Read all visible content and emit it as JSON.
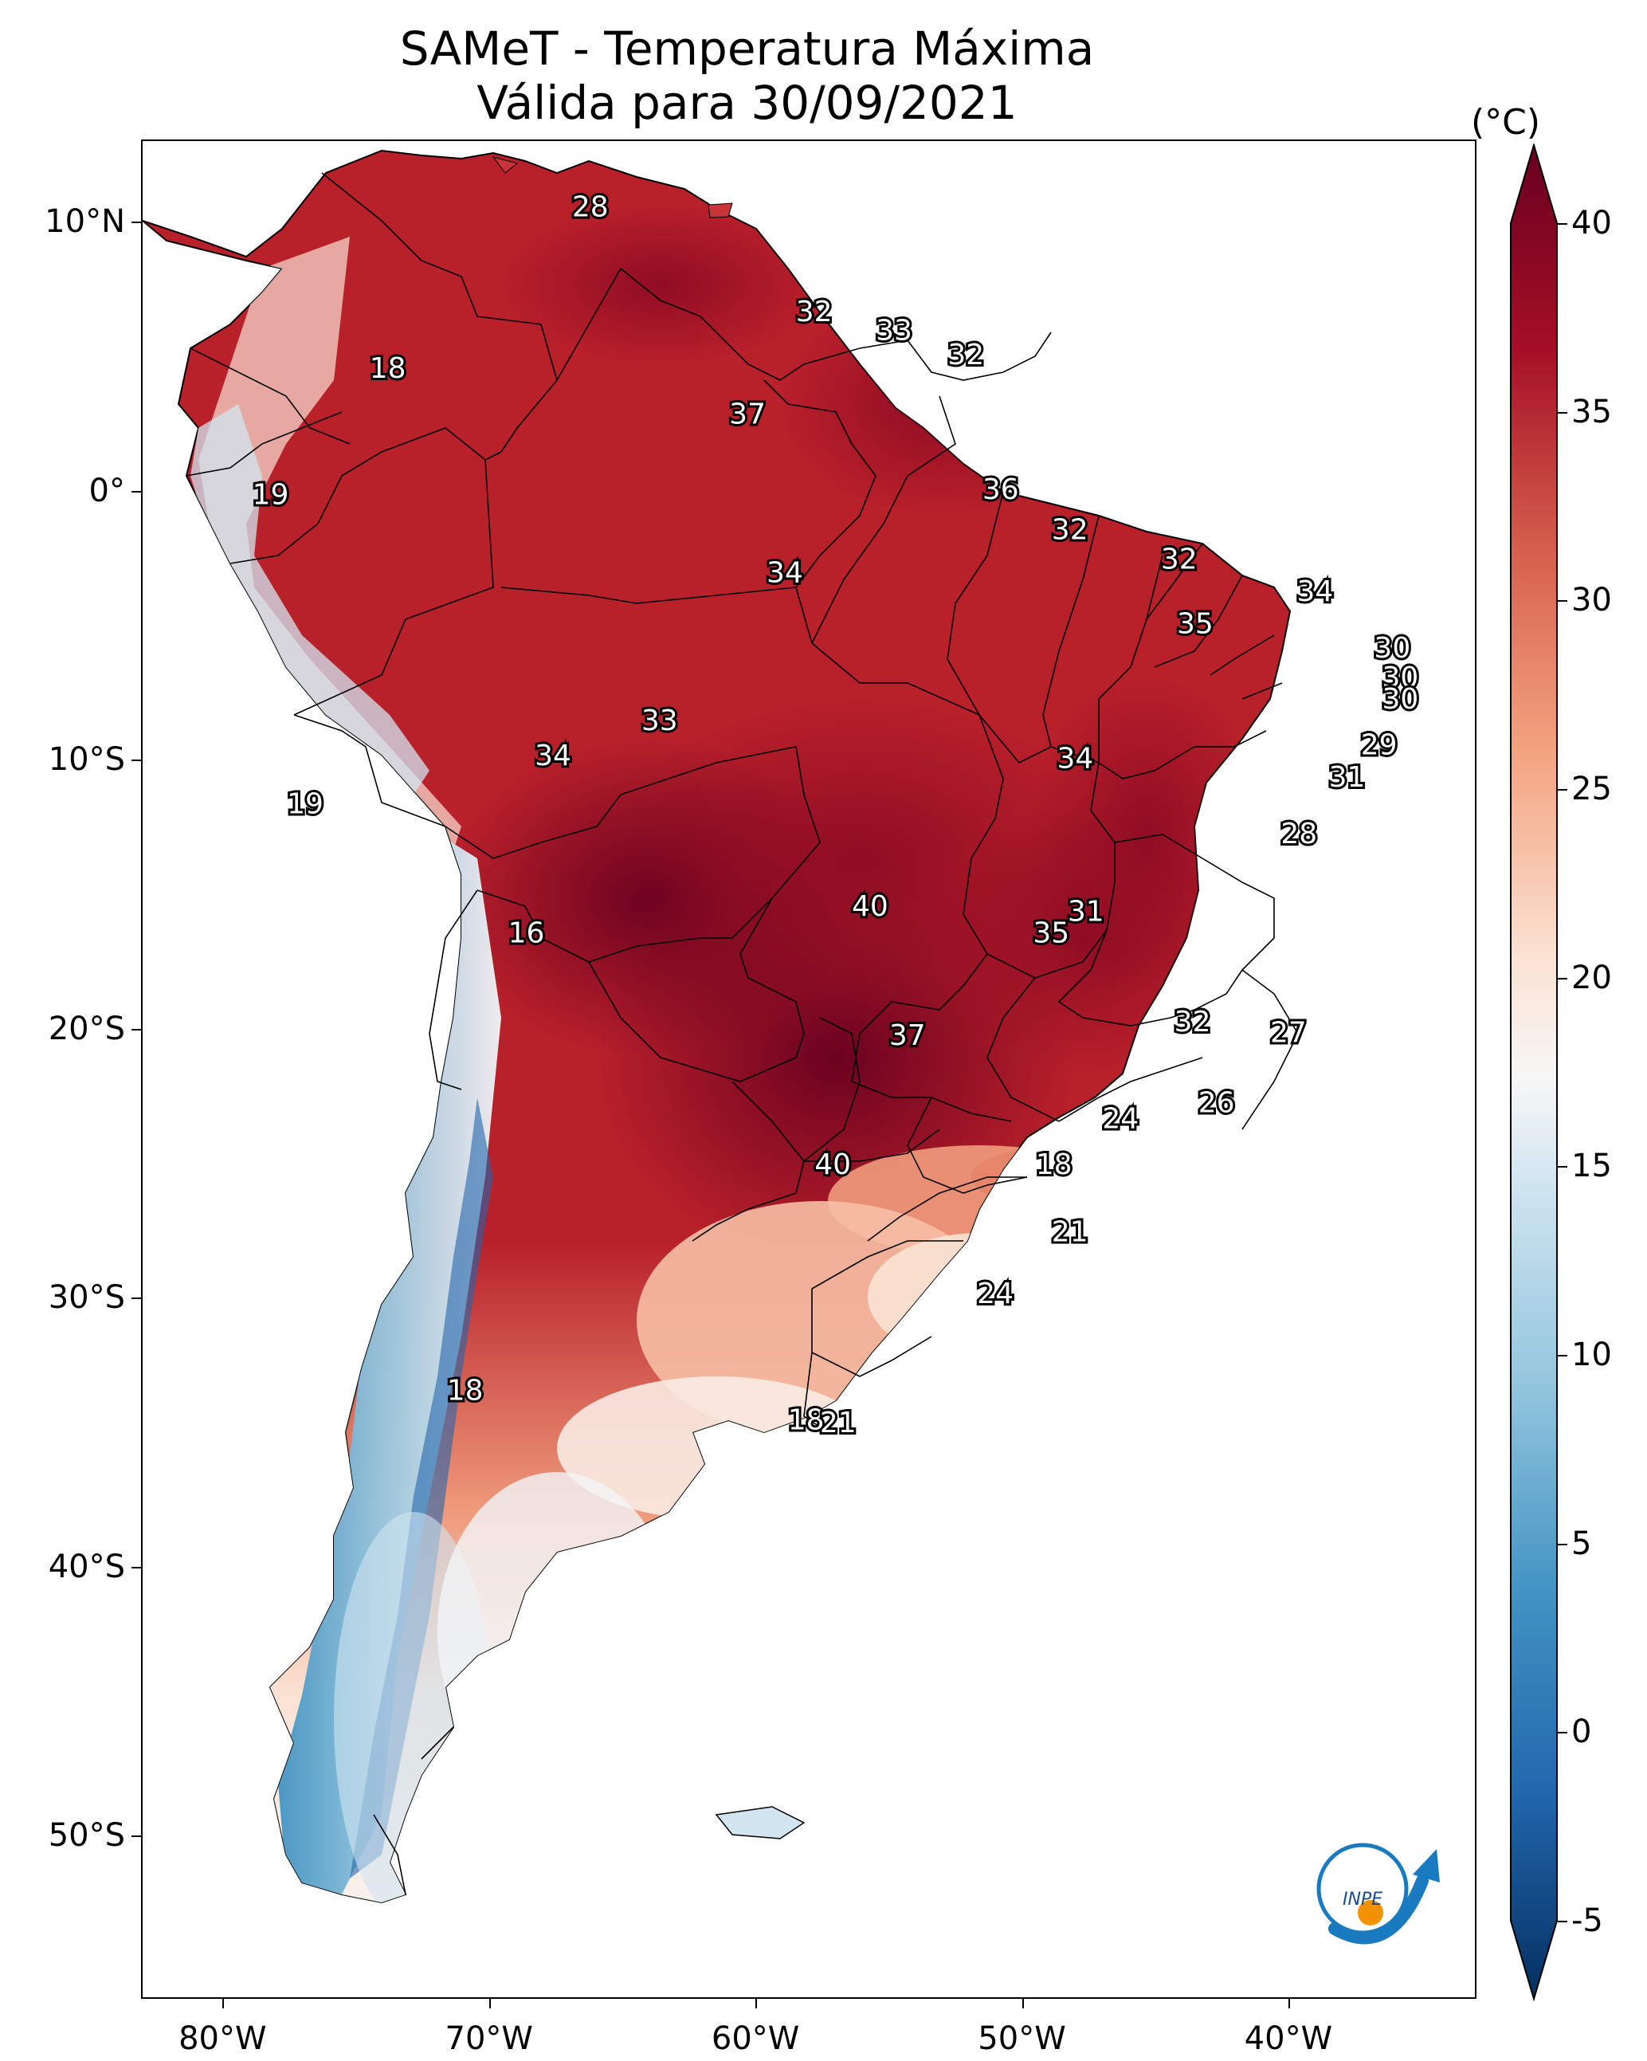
{
  "title": {
    "line1": "SAMeT - Temperatura Máxima",
    "line2": "Válida para 30/09/2021"
  },
  "axes": {
    "y_ticks": [
      {
        "label": "10°N",
        "lat": 10
      },
      {
        "label": "0°",
        "lat": 0
      },
      {
        "label": "10°S",
        "lat": -10
      },
      {
        "label": "20°S",
        "lat": -20
      },
      {
        "label": "30°S",
        "lat": -30
      },
      {
        "label": "40°S",
        "lat": -40
      },
      {
        "label": "50°S",
        "lat": -50
      }
    ],
    "x_ticks": [
      {
        "label": "80°W",
        "lon": -80
      },
      {
        "label": "70°W",
        "lon": -70
      },
      {
        "label": "60°W",
        "lon": -60
      },
      {
        "label": "50°W",
        "lon": -50
      },
      {
        "label": "40°W",
        "lon": -40
      }
    ],
    "extent": {
      "lon_min": -83,
      "lon_max": -33,
      "lat_min": -56,
      "lat_max": 13
    }
  },
  "colorbar": {
    "unit": "(°C)",
    "min": -5,
    "max": 40,
    "ticks": [
      "40",
      "35",
      "30",
      "25",
      "20",
      "15",
      "10",
      "5",
      "0",
      "-5"
    ],
    "colors": {
      "t40": "#67001f",
      "t35": "#a50f26",
      "t30": "#d6604d",
      "t25": "#f4a582",
      "t20": "#fbe3d4",
      "t17": "#f7f7f7",
      "t15": "#d1e5f0",
      "t10": "#92c5de",
      "t5": "#4393c3",
      "t0": "#2166ac",
      "tm5": "#053061"
    }
  },
  "temperature_labels": [
    {
      "text": "28",
      "lon": -66.2,
      "lat": 10.5
    },
    {
      "text": "32",
      "lon": -57.8,
      "lat": 6.6
    },
    {
      "text": "33",
      "lon": -54.8,
      "lat": 5.9
    },
    {
      "text": "32",
      "lon": -52.1,
      "lat": 5.0
    },
    {
      "text": "37",
      "lon": -60.3,
      "lat": 2.8
    },
    {
      "text": "18",
      "lon": -73.8,
      "lat": 4.5
    },
    {
      "text": "19",
      "lon": -78.2,
      "lat": -0.2
    },
    {
      "text": "36",
      "lon": -50.8,
      "lat": 0.0
    },
    {
      "text": "32",
      "lon": -48.2,
      "lat": -1.5
    },
    {
      "text": "32",
      "lon": -44.1,
      "lat": -2.6
    },
    {
      "text": "34",
      "lon": -58.9,
      "lat": -3.1
    },
    {
      "text": "34",
      "lon": -39.0,
      "lat": -3.8
    },
    {
      "text": "35",
      "lon": -43.5,
      "lat": -5.0
    },
    {
      "text": "30",
      "lon": -36.1,
      "lat": -5.9
    },
    {
      "text": "30",
      "lon": -35.8,
      "lat": -7.0
    },
    {
      "text": "30",
      "lon": -35.8,
      "lat": -7.8
    },
    {
      "text": "33",
      "lon": -63.6,
      "lat": -8.6
    },
    {
      "text": "34",
      "lon": -67.6,
      "lat": -9.9
    },
    {
      "text": "34",
      "lon": -48.0,
      "lat": -10.0
    },
    {
      "text": "29",
      "lon": -36.6,
      "lat": -9.5
    },
    {
      "text": "31",
      "lon": -37.8,
      "lat": -10.7
    },
    {
      "text": "19",
      "lon": -76.9,
      "lat": -11.7
    },
    {
      "text": "28",
      "lon": -39.6,
      "lat": -12.8
    },
    {
      "text": "40",
      "lon": -55.7,
      "lat": -15.5
    },
    {
      "text": "31",
      "lon": -47.6,
      "lat": -15.7
    },
    {
      "text": "35",
      "lon": -48.9,
      "lat": -16.5
    },
    {
      "text": "16",
      "lon": -68.6,
      "lat": -16.5
    },
    {
      "text": "32",
      "lon": -43.6,
      "lat": -19.8
    },
    {
      "text": "27",
      "lon": -40.0,
      "lat": -20.2
    },
    {
      "text": "37",
      "lon": -54.3,
      "lat": -20.3
    },
    {
      "text": "26",
      "lon": -42.7,
      "lat": -22.8
    },
    {
      "text": "24",
      "lon": -46.3,
      "lat": -23.4
    },
    {
      "text": "40",
      "lon": -57.1,
      "lat": -25.1
    },
    {
      "text": "18",
      "lon": -48.8,
      "lat": -25.1
    },
    {
      "text": "21",
      "lon": -48.2,
      "lat": -27.6
    },
    {
      "text": "24",
      "lon": -51.0,
      "lat": -29.9
    },
    {
      "text": "18",
      "lon": -70.9,
      "lat": -33.5
    },
    {
      "text": "18",
      "lon": -58.1,
      "lat": -34.6
    },
    {
      "text": "21",
      "lon": -56.9,
      "lat": -34.7
    }
  ],
  "logo": {
    "text": "INPE"
  }
}
